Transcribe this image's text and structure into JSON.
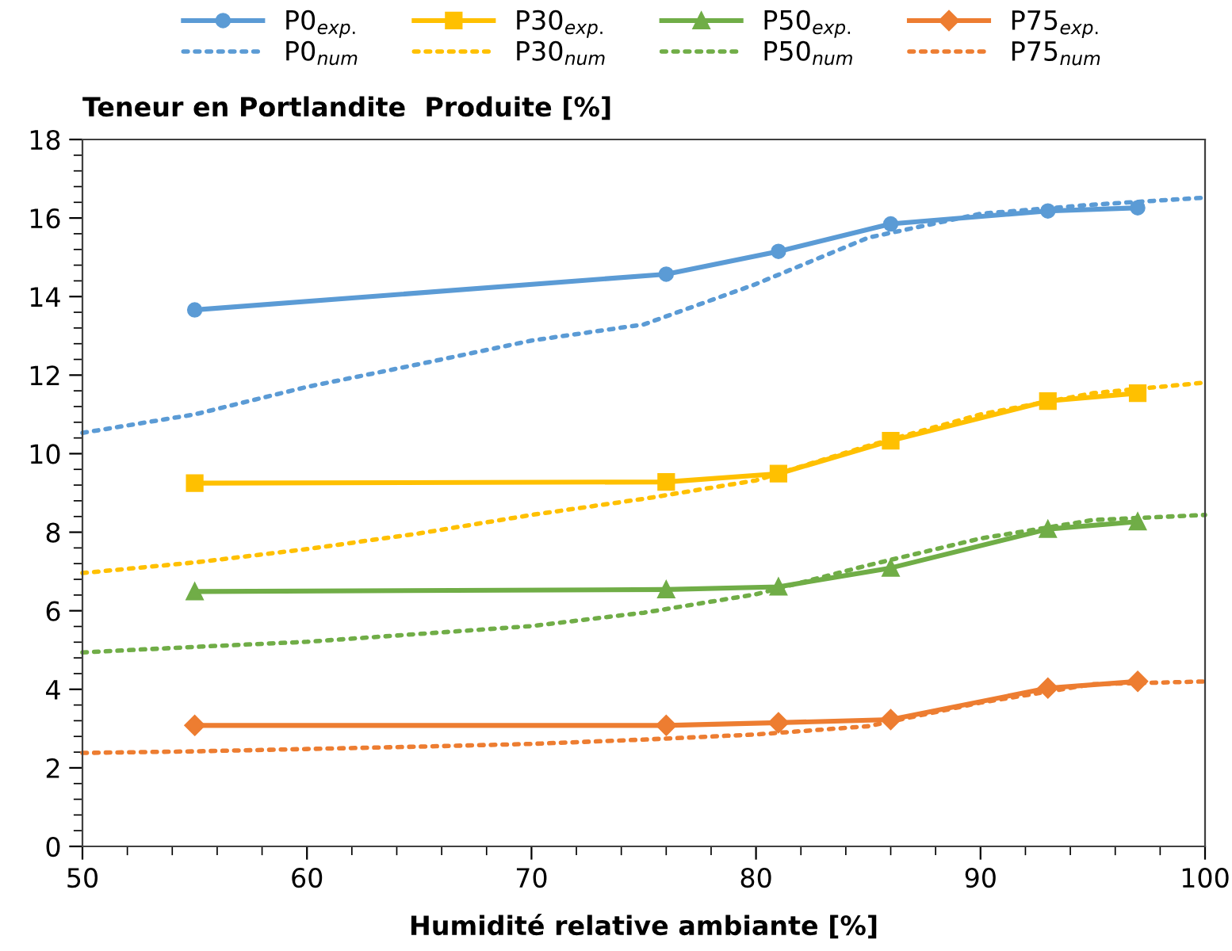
{
  "chart_data": {
    "type": "line",
    "ylabel": "Teneur en Portlandite  Produite [%]",
    "xlabel": "Humidité relative ambiante [%]",
    "xlim": [
      50,
      100
    ],
    "ylim": [
      0,
      18
    ],
    "xticks": [
      50,
      {
        "value": 52,
        "label": null
      },
      {
        "value": 54,
        "label": null
      },
      {
        "value": 56,
        "label": null
      },
      {
        "value": 58,
        "label": null
      },
      60,
      {
        "value": 62,
        "label": null
      },
      {
        "value": 64,
        "label": null
      },
      {
        "value": 66,
        "label": null
      },
      {
        "value": 68,
        "label": null
      },
      70,
      {
        "value": 72,
        "label": null
      },
      {
        "value": 74,
        "label": null
      },
      {
        "value": 76,
        "label": null
      },
      {
        "value": 78,
        "label": null
      },
      80,
      {
        "value": 82,
        "label": null
      },
      {
        "value": 84,
        "label": null
      },
      {
        "value": 86,
        "label": null
      },
      {
        "value": 88,
        "label": null
      },
      90,
      {
        "value": 92,
        "label": null
      },
      {
        "value": 94,
        "label": null
      },
      {
        "value": 96,
        "label": null
      },
      {
        "value": 98,
        "label": null
      },
      100
    ],
    "yticks": [
      0,
      {
        "value": 0.4,
        "label": null
      },
      {
        "value": 0.8,
        "label": null
      },
      {
        "value": 1.2,
        "label": null
      },
      {
        "value": 1.6,
        "label": null
      },
      2,
      {
        "value": 2.4,
        "label": null
      },
      {
        "value": 2.8,
        "label": null
      },
      {
        "value": 3.2,
        "label": null
      },
      {
        "value": 3.6,
        "label": null
      },
      4,
      {
        "value": 4.4,
        "label": null
      },
      {
        "value": 4.8,
        "label": null
      },
      {
        "value": 5.2,
        "label": null
      },
      {
        "value": 5.6,
        "label": null
      },
      6,
      {
        "value": 6.4,
        "label": null
      },
      {
        "value": 6.8,
        "label": null
      },
      {
        "value": 7.2,
        "label": null
      },
      {
        "value": 7.6,
        "label": null
      },
      8,
      {
        "value": 8.4,
        "label": null
      },
      {
        "value": 8.8,
        "label": null
      },
      {
        "value": 9.2,
        "label": null
      },
      {
        "value": 9.6,
        "label": null
      },
      10,
      {
        "value": 10.4,
        "label": null
      },
      {
        "value": 10.8,
        "label": null
      },
      {
        "value": 11.2,
        "label": null
      },
      {
        "value": 11.6,
        "label": null
      },
      12,
      {
        "value": 12.4,
        "label": null
      },
      {
        "value": 12.8,
        "label": null
      },
      {
        "value": 13.2,
        "label": null
      },
      {
        "value": 13.6,
        "label": null
      },
      14,
      {
        "value": 14.4,
        "label": null
      },
      {
        "value": 14.8,
        "label": null
      },
      {
        "value": 15.2,
        "label": null
      },
      {
        "value": 15.6,
        "label": null
      },
      16,
      {
        "value": 16.4,
        "label": null
      },
      {
        "value": 16.8,
        "label": null
      },
      {
        "value": 17.2,
        "label": null
      },
      {
        "value": 17.6,
        "label": null
      },
      18
    ],
    "grid": false,
    "legend": "top",
    "series": [
      {
        "name": "P0$_{exp.}$",
        "color": "#5b9bd5",
        "marker": "circle",
        "line_style": "solid",
        "x": [
          55,
          76,
          81,
          86,
          93,
          97
        ],
        "values": [
          13.66,
          14.57,
          15.15,
          15.85,
          16.18,
          16.26
        ]
      },
      {
        "name": "P0$_{num}$",
        "color": "#5b9bd5",
        "marker": "none",
        "line_style": "dotted",
        "x": [
          50,
          55,
          60,
          65,
          70,
          75,
          80,
          85,
          90,
          95,
          100
        ],
        "values": [
          10.53,
          11.0,
          11.7,
          12.28,
          12.88,
          13.29,
          14.32,
          15.5,
          16.11,
          16.34,
          16.52
        ]
      },
      {
        "name": "P30$_{exp.}$",
        "color": "#ffc000",
        "marker": "square",
        "line_style": "solid",
        "x": [
          55,
          76,
          81,
          86,
          93,
          97
        ],
        "values": [
          9.25,
          9.28,
          9.49,
          10.33,
          11.34,
          11.54
        ]
      },
      {
        "name": "P30$_{num}$",
        "color": "#ffc000",
        "marker": "none",
        "line_style": "dotted",
        "x": [
          50,
          55,
          60,
          65,
          70,
          75,
          80,
          85,
          90,
          95,
          100
        ],
        "values": [
          6.96,
          7.23,
          7.57,
          7.97,
          8.44,
          8.85,
          9.32,
          10.2,
          11.0,
          11.54,
          11.81
        ]
      },
      {
        "name": "P50$_{exp.}$",
        "color": "#70ad47",
        "marker": "triangle",
        "line_style": "solid",
        "x": [
          55,
          76,
          81,
          86,
          93,
          97
        ],
        "values": [
          6.49,
          6.54,
          6.61,
          7.09,
          8.08,
          8.27
        ]
      },
      {
        "name": "P50$_{num}$",
        "color": "#70ad47",
        "marker": "none",
        "line_style": "dotted",
        "x": [
          50,
          55,
          60,
          65,
          70,
          75,
          80,
          85,
          90,
          95,
          100
        ],
        "values": [
          4.94,
          5.08,
          5.21,
          5.41,
          5.61,
          5.95,
          6.42,
          7.16,
          7.84,
          8.31,
          8.44
        ]
      },
      {
        "name": "P75$_{exp.}$",
        "color": "#ed7d31",
        "marker": "diamond",
        "line_style": "solid",
        "x": [
          55,
          76,
          81,
          86,
          93,
          97
        ],
        "values": [
          3.08,
          3.08,
          3.15,
          3.23,
          4.03,
          4.2
        ]
      },
      {
        "name": "P75$_{num}$",
        "color": "#ed7d31",
        "marker": "none",
        "line_style": "dotted",
        "x": [
          50,
          55,
          60,
          65,
          70,
          75,
          80,
          85,
          90,
          95,
          100
        ],
        "values": [
          2.38,
          2.42,
          2.48,
          2.54,
          2.61,
          2.72,
          2.85,
          3.06,
          3.66,
          4.13,
          4.2
        ]
      }
    ]
  }
}
